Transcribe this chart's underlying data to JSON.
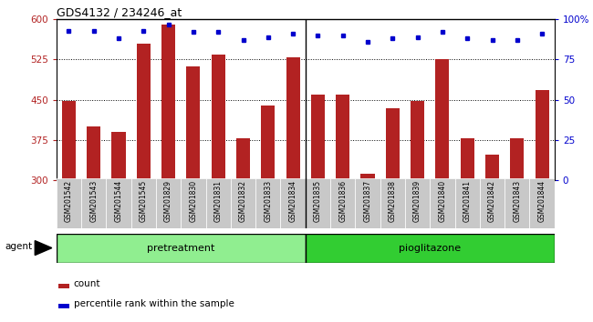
{
  "title": "GDS4132 / 234246_at",
  "categories": [
    "GSM201542",
    "GSM201543",
    "GSM201544",
    "GSM201545",
    "GSM201829",
    "GSM201830",
    "GSM201831",
    "GSM201832",
    "GSM201833",
    "GSM201834",
    "GSM201835",
    "GSM201836",
    "GSM201837",
    "GSM201838",
    "GSM201839",
    "GSM201840",
    "GSM201841",
    "GSM201842",
    "GSM201843",
    "GSM201844"
  ],
  "bar_values": [
    448,
    400,
    390,
    555,
    590,
    512,
    535,
    378,
    440,
    530,
    460,
    460,
    312,
    435,
    448,
    525,
    378,
    348,
    378,
    468
  ],
  "percentile_values": [
    93,
    93,
    88,
    93,
    97,
    92,
    92,
    87,
    89,
    91,
    90,
    90,
    86,
    88,
    89,
    92,
    88,
    87,
    87,
    91
  ],
  "bar_color": "#B22222",
  "percentile_color": "#0000CD",
  "pretreatment_count": 10,
  "pretreatment_label": "pretreatment",
  "pioglitazone_label": "pioglitazone",
  "pretreatment_color": "#90EE90",
  "pioglitazone_color": "#32CD32",
  "agent_label": "agent",
  "ylim_left": [
    300,
    600
  ],
  "ylim_right": [
    0,
    100
  ],
  "yticks_left": [
    300,
    375,
    450,
    525,
    600
  ],
  "yticks_right": [
    0,
    25,
    50,
    75,
    100
  ],
  "grid_lines": [
    375,
    450,
    525
  ],
  "legend_count_label": "count",
  "legend_percentile_label": "percentile rank within the sample"
}
